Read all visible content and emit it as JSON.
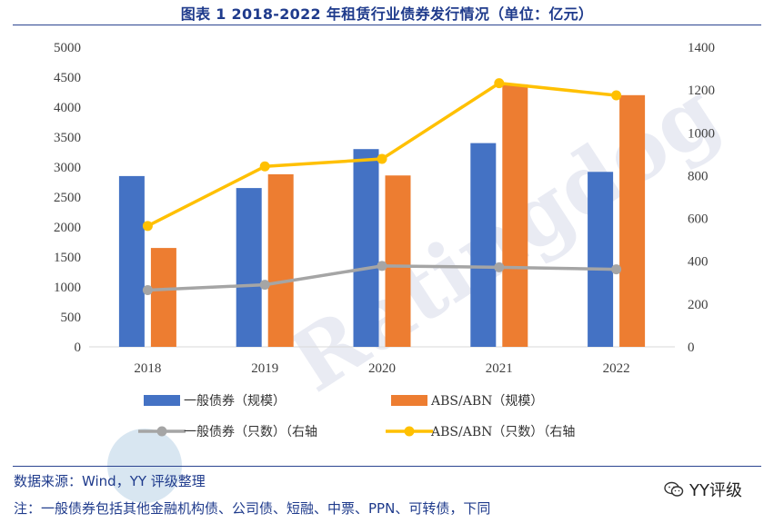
{
  "title": "图表 1 2018-2022 年租赁行业债券发行情况（单位：亿元）",
  "source": "数据来源：Wind，YY 评级整理",
  "note": "注：一般债券包括其他金融机构债、公司债、短融、中票、PPN、可转债，下同",
  "watermark": "Ratingdog",
  "wechat_label": "YY评级",
  "chart_data": {
    "type": "bar",
    "categories": [
      "2018",
      "2019",
      "2020",
      "2021",
      "2022"
    ],
    "series": [
      {
        "name": "一般债券（规模）",
        "kind": "bar",
        "axis": "left",
        "color": "#4472c4",
        "values": [
          2850,
          2650,
          3300,
          3400,
          2920
        ]
      },
      {
        "name": "ABS/ABN（规模）",
        "kind": "bar",
        "axis": "left",
        "color": "#ed7d31",
        "values": [
          1650,
          2880,
          2860,
          4380,
          4200
        ]
      },
      {
        "name": "一般债券（只数）（右轴",
        "kind": "line",
        "axis": "right",
        "color": "#a5a5a5",
        "values": [
          265,
          290,
          378,
          372,
          362
        ]
      },
      {
        "name": "ABS/ABN（只数）（右轴",
        "kind": "line",
        "axis": "right",
        "color": "#ffc000",
        "values": [
          565,
          843,
          878,
          1232,
          1175
        ]
      }
    ],
    "left_axis": {
      "min": 0,
      "max": 5000,
      "ticks": [
        "0",
        "500",
        "1000",
        "1500",
        "2000",
        "2500",
        "3000",
        "3500",
        "4000",
        "4500",
        "5000"
      ]
    },
    "right_axis": {
      "min": 0,
      "max": 1400,
      "ticks": [
        "0",
        "200",
        "400",
        "600",
        "800",
        "1000",
        "1200",
        "1400"
      ]
    },
    "legend_position": "bottom"
  }
}
